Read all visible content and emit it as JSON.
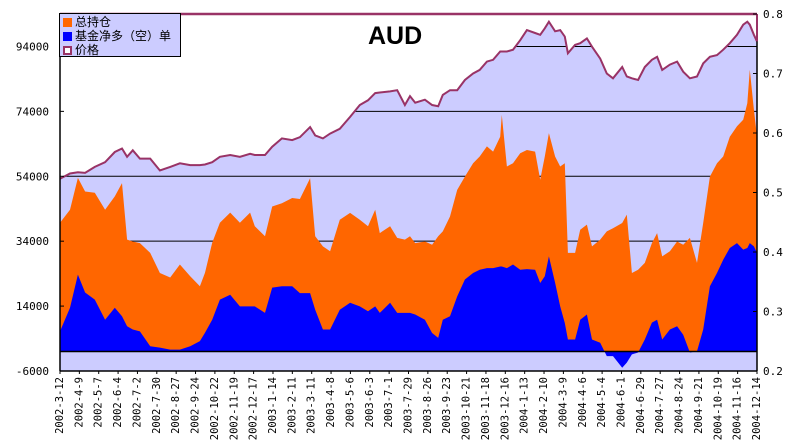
{
  "chart_data": {
    "type": "area",
    "title": "AUD",
    "legend_position": "top-left",
    "colors": {
      "total": "#ff6600",
      "net": "#0000ff",
      "price_fill": "#ccccff",
      "price_line": "#993366",
      "grid": "#000000"
    },
    "x_tick_labels": [
      "2002-3-12",
      "2002-4-9",
      "2002-5-7",
      "2002-6-4",
      "2002-7-2",
      "2002-7-30",
      "2002-8-27",
      "2002-9-24",
      "2002-10-22",
      "2002-11-19",
      "2002-12-17",
      "2003-1-14",
      "2003-2-11",
      "2003-3-11",
      "2003-4-8",
      "2003-5-6",
      "2003-6-3",
      "2003-7-1",
      "2003-7-29",
      "2003-8-26",
      "2003-9-23",
      "2003-10-21",
      "2003-11-18",
      "2003-12-16",
      "2004-1-13",
      "2004-2-10",
      "2004-3-9",
      "2004-4-6",
      "2004-5-4",
      "2004-6-1",
      "2004-6-29",
      "2004-7-27",
      "2004-8-24",
      "2004-9-21",
      "2004-10-19",
      "2004-11-16",
      "2004-12-14"
    ],
    "x_unit": "weeks since 2002-3-12",
    "xlim": [
      0,
      136
    ],
    "left_axis": {
      "ylim": [
        -6000,
        104000
      ],
      "ticks": [
        "94000",
        "74000",
        "54000",
        "34000",
        "14000",
        "-6000"
      ],
      "tick_values": [
        94000,
        74000,
        54000,
        34000,
        14000,
        -6000
      ]
    },
    "right_axis": {
      "ylim": [
        0.2,
        0.8
      ],
      "ticks": [
        "0.8",
        "0.7",
        "0.6",
        "0.5",
        "0.4",
        "0.3",
        "0.2"
      ],
      "tick_values": [
        0.8,
        0.7,
        0.6,
        0.5,
        0.4,
        0.3,
        0.2
      ]
    },
    "x": [
      0,
      1.95,
      3.5,
      4.9,
      6.8,
      8.8,
      10.7,
      12.1,
      13.1,
      14.2,
      15.6,
      17.6,
      19.5,
      21.5,
      23.4,
      25.4,
      27.3,
      28.3,
      29.7,
      31.2,
      33.2,
      35.1,
      37.1,
      38,
      40,
      41.4,
      43.3,
      45.3,
      46.8,
      48.8,
      49.8,
      51.3,
      52.7,
      54.6,
      56.6,
      58.5,
      60.1,
      61.5,
      62.4,
      64.4,
      65.8,
      67.3,
      68.3,
      69.3,
      71.2,
      72.6,
      73.8,
      74.7,
      76.1,
      77.5,
      79,
      80.6,
      81.9,
      83.3,
      84.5,
      85.9,
      86.2,
      87.2,
      88.4,
      89.8,
      91.1,
      92.7,
      93.7,
      94.6,
      95.4,
      96.6,
      97.6,
      98.5,
      99.1,
      100.5,
      101.5,
      102.8,
      103.8,
      105.4,
      106.7,
      107.9,
      109.7,
      110.6,
      111.6,
      112.8,
      114.1,
      115.5,
      116.5,
      117.5,
      119,
      120.4,
      121.6,
      122.9,
      124.3,
      125.5,
      126.8,
      128.2,
      129.4,
      130.7,
      132.1,
      133.3,
      134.1,
      134.6,
      135.4,
      136
    ],
    "series": [
      {
        "name": "总持仓",
        "axis": "left",
        "values": [
          39700,
          43700,
          53500,
          49300,
          48900,
          43700,
          47800,
          51900,
          34500,
          33900,
          33400,
          30400,
          24200,
          22800,
          26800,
          23200,
          20100,
          24300,
          33500,
          39700,
          42800,
          39700,
          42800,
          38600,
          35500,
          44700,
          45700,
          47300,
          47000,
          53400,
          35500,
          32400,
          30900,
          40600,
          42700,
          40600,
          38600,
          43700,
          36500,
          38600,
          35000,
          34500,
          35500,
          33400,
          33900,
          32900,
          35500,
          37000,
          41600,
          49800,
          53900,
          58000,
          60100,
          63200,
          61600,
          66200,
          72900,
          57000,
          58000,
          61100,
          62100,
          61600,
          52900,
          60100,
          67300,
          60100,
          57000,
          58000,
          30400,
          30400,
          37500,
          39100,
          32400,
          34500,
          37000,
          38000,
          39600,
          42200,
          24200,
          25200,
          27300,
          33400,
          36500,
          29300,
          30900,
          33900,
          32900,
          35000,
          27300,
          39600,
          53900,
          58000,
          60100,
          66200,
          69400,
          71400,
          76500,
          86800,
          74500,
          66200
        ]
      },
      {
        "name": "基金净多（空）单",
        "axis": "left",
        "values": [
          6200,
          13500,
          23700,
          18200,
          16000,
          9800,
          13500,
          10900,
          7800,
          6800,
          6200,
          1600,
          1200,
          600,
          600,
          1600,
          3200,
          5800,
          9800,
          16000,
          17500,
          13900,
          13900,
          13900,
          11900,
          19700,
          20100,
          20100,
          18000,
          18000,
          12900,
          6800,
          6800,
          12900,
          15000,
          13900,
          12400,
          13900,
          11900,
          15000,
          11900,
          11900,
          11900,
          11400,
          9800,
          5700,
          4200,
          9800,
          10900,
          17000,
          22200,
          24200,
          25200,
          25700,
          25700,
          26200,
          26200,
          25700,
          26800,
          25200,
          25400,
          25200,
          21100,
          23200,
          29300,
          21200,
          13900,
          8800,
          3700,
          3700,
          9800,
          11400,
          3700,
          2700,
          -1400,
          -1400,
          -5000,
          -3400,
          -900,
          -300,
          3700,
          8900,
          9800,
          3700,
          6800,
          7800,
          5200,
          -300,
          100,
          6800,
          20100,
          24200,
          28300,
          31900,
          33400,
          31400,
          31900,
          33400,
          32400,
          30400
        ]
      },
      {
        "name": "价格",
        "axis": "right",
        "values": [
          0.523,
          0.532,
          0.534,
          0.533,
          0.543,
          0.551,
          0.568,
          0.574,
          0.56,
          0.571,
          0.557,
          0.557,
          0.537,
          0.543,
          0.549,
          0.546,
          0.546,
          0.547,
          0.551,
          0.56,
          0.563,
          0.56,
          0.565,
          0.563,
          0.563,
          0.577,
          0.591,
          0.588,
          0.593,
          0.61,
          0.596,
          0.591,
          0.599,
          0.607,
          0.627,
          0.647,
          0.655,
          0.667,
          0.668,
          0.67,
          0.672,
          0.647,
          0.662,
          0.651,
          0.656,
          0.647,
          0.645,
          0.664,
          0.672,
          0.672,
          0.689,
          0.7,
          0.706,
          0.72,
          0.723,
          0.737,
          0.737,
          0.737,
          0.74,
          0.756,
          0.773,
          0.768,
          0.765,
          0.776,
          0.787,
          0.771,
          0.773,
          0.762,
          0.734,
          0.748,
          0.751,
          0.759,
          0.745,
          0.725,
          0.7,
          0.692,
          0.711,
          0.695,
          0.692,
          0.689,
          0.711,
          0.723,
          0.728,
          0.706,
          0.715,
          0.72,
          0.703,
          0.692,
          0.695,
          0.717,
          0.728,
          0.731,
          0.74,
          0.751,
          0.765,
          0.782,
          0.787,
          0.782,
          0.765,
          0.754
        ]
      }
    ]
  }
}
